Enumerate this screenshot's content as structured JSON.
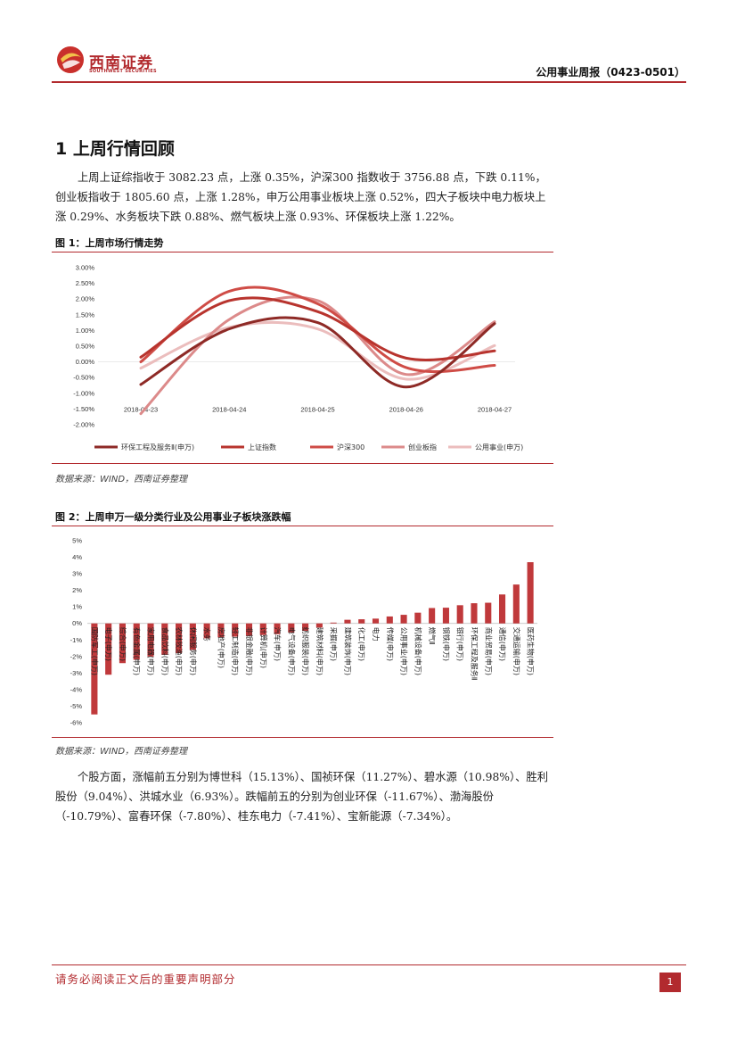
{
  "header": {
    "logo_cn": "西南证券",
    "logo_en": "SOUTHWEST SECURITIES",
    "report_title": "公用事业周报（0423-0501）"
  },
  "section": {
    "title": "1 上周行情回顾",
    "para1": "上周上证综指收于 3082.23 点，上涨 0.35%，沪深300 指数收于 3756.88 点，下跌 0.11%，创业板指收于 1805.60 点，上涨 1.28%，申万公用事业板块上涨 0.52%，四大子板块中电力板块上涨 0.29%、水务板块下跌 0.88%、燃气板块上涨 0.93%、环保板块上涨 1.22%。",
    "para2": "个股方面，涨幅前五分别为博世科（15.13%）、国祯环保（11.27%）、碧水源（10.98%）、胜利股份（9.04%）、洪城水业（6.93%）。跌幅前五的分别为创业环保（-11.67%）、渤海股份（-10.79%）、富春环保（-7.80%）、桂东电力（-7.41%）、宝新能源（-7.34%）。"
  },
  "figure1": {
    "caption": "图 1：上周市场行情走势",
    "source": "数据来源：WIND，西南证券整理"
  },
  "figure2": {
    "caption": "图 2：上周申万一级分类行业及公用事业子板块涨跌幅",
    "source": "数据来源：WIND，西南证券整理"
  },
  "footer": {
    "disclaimer": "请务必阅读正文后的重要声明部分",
    "page": "1"
  },
  "colors": {
    "brand_red": "#b22a2e"
  },
  "chart_data": [
    {
      "type": "line",
      "x": [
        "2018-04-23",
        "2018-04-24",
        "2018-04-25",
        "2018-04-26",
        "2018-04-27"
      ],
      "ylim": [
        -2.0,
        3.0
      ],
      "yticks": [
        "-2.00%",
        "-1.50%",
        "-1.00%",
        "-0.50%",
        "0.00%",
        "0.50%",
        "1.00%",
        "1.50%",
        "2.00%",
        "2.50%",
        "3.00%"
      ],
      "legend_position": "bottom",
      "series": [
        {
          "name": "环保工程及服务Ⅱ(申万)",
          "color": "#8e2a26",
          "values": [
            -0.72,
            1.05,
            1.25,
            -0.8,
            1.22
          ]
        },
        {
          "name": "上证指数",
          "color": "#b8342e",
          "values": [
            0.15,
            1.95,
            1.6,
            0.12,
            0.35
          ]
        },
        {
          "name": "沪深300",
          "color": "#cf4c46",
          "values": [
            0.0,
            2.25,
            1.85,
            -0.18,
            -0.11
          ]
        },
        {
          "name": "创业板指",
          "color": "#dc8a8a",
          "values": [
            -1.65,
            1.35,
            1.95,
            -0.4,
            1.28
          ]
        },
        {
          "name": "公用事业(申万)",
          "color": "#ebbdbd",
          "values": [
            -0.2,
            1.1,
            1.05,
            -0.55,
            0.52
          ]
        }
      ]
    },
    {
      "type": "bar",
      "color": "#c0393b",
      "ylim": [
        -6,
        5
      ],
      "yticks": [
        "-6%",
        "-5%",
        "-4%",
        "-3%",
        "-2%",
        "-1%",
        "0%",
        "1%",
        "2%",
        "3%",
        "4%",
        "5%"
      ],
      "categories": [
        "国防军工(申万)",
        "电子(申万)",
        "综合(申万)",
        "有色金属(申万)",
        "家用电器(申万)",
        "食品饮料(申万)",
        "农林牧渔(申万)",
        "休闲服务(申万)",
        "水务",
        "房地产(申万)",
        "轻工制造(申万)",
        "非银金融(申万)",
        "计算机(申万)",
        "汽车(申万)",
        "电气设备(申万)",
        "纺织服装(申万)",
        "建筑材料(申万)",
        "采掘(申万)",
        "建筑装饰(申万)",
        "化工(申万)",
        "电力",
        "传媒(申万)",
        "公用事业(申万)",
        "机械设备(申万)",
        "燃气Ⅱ",
        "钢铁(申万)",
        "银行(申万)",
        "环保工程及服务Ⅱ",
        "商业贸易(申万)",
        "通信(申万)",
        "交通运输(申万)",
        "医药生物(申万)"
      ],
      "values": [
        -5.5,
        -3.1,
        -2.4,
        -2.2,
        -2.0,
        -1.9,
        -1.8,
        -1.6,
        -0.9,
        -0.85,
        -0.8,
        -0.75,
        -0.7,
        -0.65,
        -0.55,
        -0.45,
        -0.25,
        0.05,
        0.22,
        0.25,
        0.29,
        0.42,
        0.52,
        0.65,
        0.93,
        0.95,
        1.1,
        1.22,
        1.25,
        1.75,
        2.35,
        3.7
      ]
    }
  ]
}
